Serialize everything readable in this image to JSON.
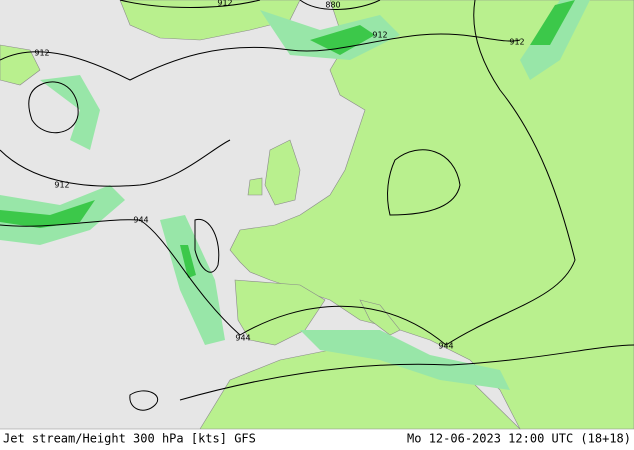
{
  "map": {
    "contour_labels": [
      "912",
      "880",
      "912",
      "912",
      "912",
      "912",
      "944",
      "944",
      "944"
    ]
  },
  "footer": {
    "left": "Jet stream/Height 300 hPa [kts] GFS",
    "right": "Mo 12-06-2023 12:00 UTC (18+18)"
  }
}
